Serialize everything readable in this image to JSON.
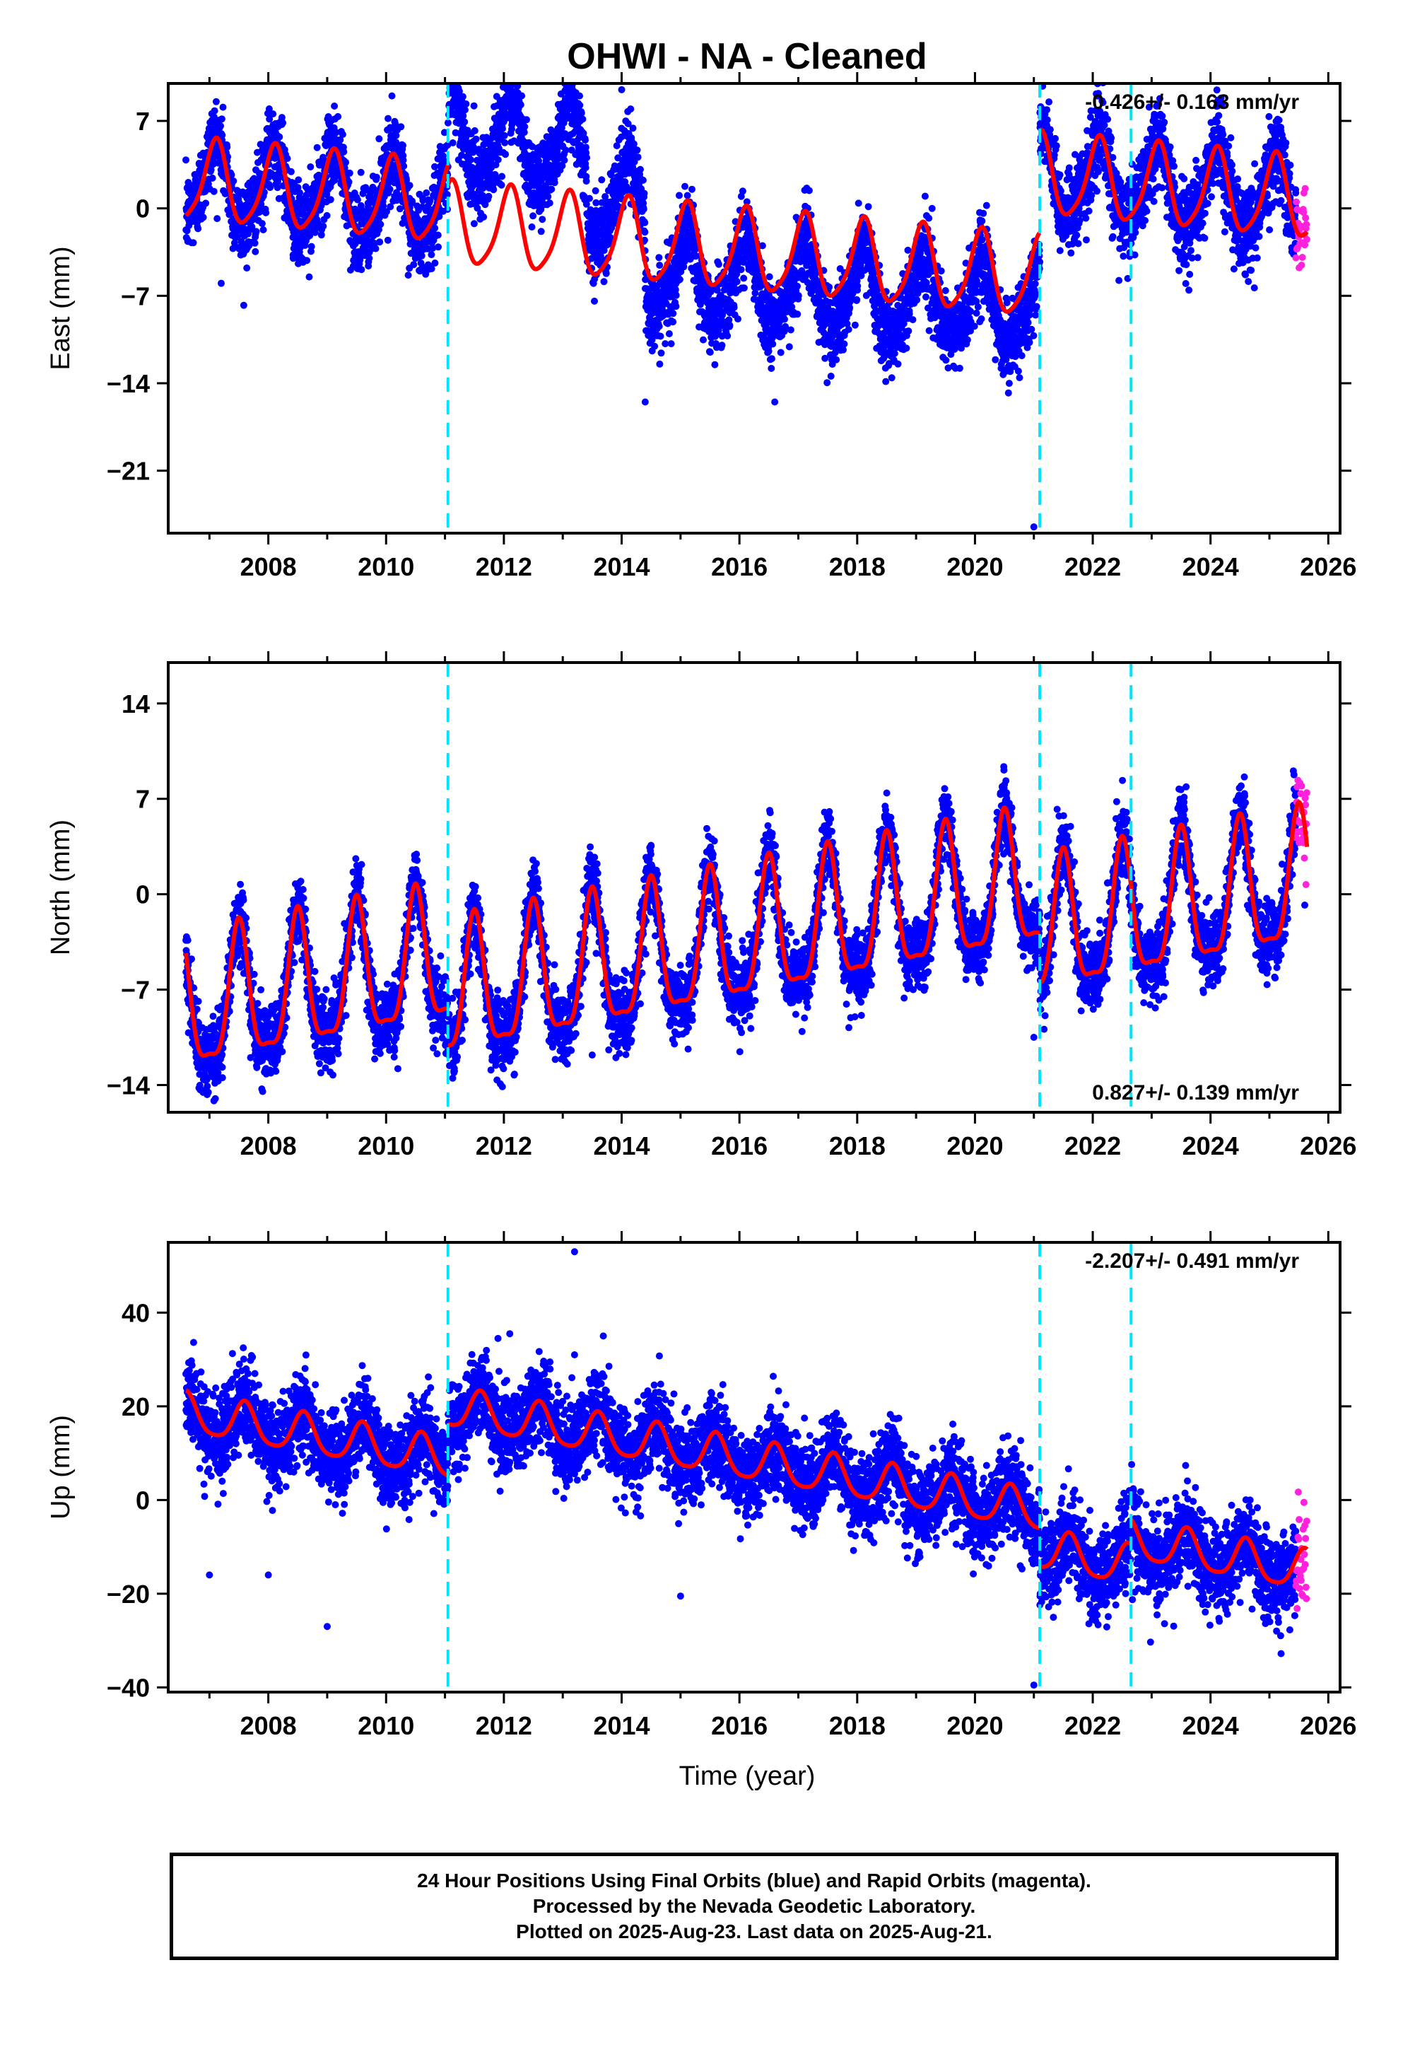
{
  "title": "OHWI  - NA - Cleaned",
  "xlabel": "Time (year)",
  "footer": {
    "line1": "24 Hour Positions Using Final Orbits (blue) and Rapid Orbits (magenta).",
    "line2": "Processed by the Nevada Geodetic Laboratory.",
    "line3": "Plotted on 2025-Aug-23. Last data on 2025-Aug-21."
  },
  "colors": {
    "final_orbits": "#0000ff",
    "rapid_orbits": "#ff22dd",
    "model_fit": "#ff0000",
    "steps": "#00e5ff"
  },
  "chart_data": [
    {
      "type": "scatter",
      "ylabel": "East (mm)",
      "rate_label": "-0.426+/- 0.163 mm/yr",
      "rate_position": "top-right",
      "xlim": [
        2006.3,
        2026.2
      ],
      "ylim": [
        -26,
        10
      ],
      "yticks": [
        7,
        0,
        -7,
        -14,
        -21
      ],
      "xticks": [
        2008,
        2010,
        2012,
        2014,
        2016,
        2018,
        2020,
        2022,
        2024,
        2026
      ],
      "steps": [
        2011.05,
        2021.1,
        2022.65
      ],
      "data_range": [
        2006.6,
        2025.45
      ],
      "rapid_range": [
        2025.45,
        2025.64
      ],
      "model": {
        "segments": [
          {
            "start": 2006.6,
            "end": 2011.05,
            "level": 1.2,
            "trend": -0.426
          },
          {
            "start": 2011.05,
            "end": 2021.1,
            "level": -3.5,
            "trend": -0.426
          },
          {
            "start": 2021.1,
            "end": 2025.64,
            "level": 1.6,
            "trend": -0.426
          }
        ],
        "annual_amplitude": 3.2,
        "annual_peak": 0.1,
        "semiannual_amplitude": 0.6,
        "semiannual_peak": 0.15
      },
      "scatter_sigma": 1.6,
      "scatter_excess": [
        {
          "start": 2011.05,
          "end": 2013.4,
          "offset": 7
        },
        {
          "start": 2013.4,
          "end": 2014.4,
          "offset": 3
        },
        {
          "start": 2014.4,
          "end": 2021.1,
          "offset": -2.5
        }
      ],
      "outliers": [
        [
          2007.2,
          -6.0
        ],
        [
          2014.0,
          9.5
        ],
        [
          2014.4,
          -15.5
        ],
        [
          2016.6,
          -15.5
        ],
        [
          2021.0,
          -25.5
        ]
      ]
    },
    {
      "type": "scatter",
      "ylabel": "North (mm)",
      "rate_label": "0.827+/- 0.139 mm/yr",
      "rate_position": "bottom-right",
      "xlim": [
        2006.3,
        2026.2
      ],
      "ylim": [
        -16,
        17
      ],
      "yticks": [
        14,
        7,
        0,
        -7,
        -14
      ],
      "xticks": [
        2008,
        2010,
        2012,
        2014,
        2016,
        2018,
        2020,
        2022,
        2024,
        2026
      ],
      "steps": [
        2011.05,
        2021.1,
        2022.65
      ],
      "data_range": [
        2006.6,
        2025.45
      ],
      "rapid_range": [
        2025.45,
        2025.64
      ],
      "model": {
        "segments": [
          {
            "start": 2006.6,
            "end": 2011.05,
            "level": -6.8,
            "trend": 0.827
          },
          {
            "start": 2011.05,
            "end": 2021.1,
            "level": -3.5,
            "trend": 0.827
          },
          {
            "start": 2021.1,
            "end": 2025.64,
            "level": -1.2,
            "trend": 0.827
          }
        ],
        "annual_amplitude": 4.8,
        "annual_peak": 0.5,
        "semiannual_amplitude": 1.4,
        "semiannual_peak": 0.5
      },
      "scatter_sigma": 1.3,
      "scatter_excess": [],
      "outliers": [
        [
          2007.1,
          -15.0
        ],
        [
          2010.2,
          -12.8
        ],
        [
          2013.5,
          -11.8
        ],
        [
          2021.0,
          -10.5
        ],
        [
          2025.6,
          -0.8
        ]
      ]
    },
    {
      "type": "scatter",
      "ylabel": "Up (mm)",
      "rate_label": "-2.207+/- 0.491 mm/yr",
      "rate_position": "top-right",
      "xlim": [
        2006.3,
        2026.2
      ],
      "ylim": [
        -41,
        55
      ],
      "yticks": [
        40,
        20,
        0,
        -20,
        -40
      ],
      "xticks": [
        2008,
        2010,
        2012,
        2014,
        2016,
        2018,
        2020,
        2022,
        2024,
        2026
      ],
      "steps": [
        2011.05,
        2021.1,
        2022.65
      ],
      "data_range": [
        2006.6,
        2025.45
      ],
      "rapid_range": [
        2025.45,
        2025.64
      ],
      "model": {
        "segments": [
          {
            "start": 2006.6,
            "end": 2011.05,
            "level": 13.5,
            "trend": -2.207
          },
          {
            "start": 2011.05,
            "end": 2021.1,
            "level": 8.5,
            "trend": -2.207
          },
          {
            "start": 2021.1,
            "end": 2022.65,
            "level": -12.5,
            "trend": -2.207
          },
          {
            "start": 2022.65,
            "end": 2025.64,
            "level": -12.0,
            "trend": -2.207
          }
        ],
        "annual_amplitude": 4.2,
        "annual_peak": 0.6,
        "semiannual_amplitude": 0.8,
        "semiannual_peak": 0.6
      },
      "scatter_sigma": 4.5,
      "scatter_excess": [],
      "outliers": [
        [
          2007.0,
          -16.0
        ],
        [
          2008.0,
          -16.0
        ],
        [
          2009.0,
          -27.0
        ],
        [
          2013.2,
          53.0
        ],
        [
          2013.2,
          31.0
        ],
        [
          2011.9,
          34.5
        ],
        [
          2012.1,
          35.5
        ],
        [
          2015.0,
          -20.5
        ],
        [
          2021.0,
          -39.5
        ]
      ]
    }
  ]
}
